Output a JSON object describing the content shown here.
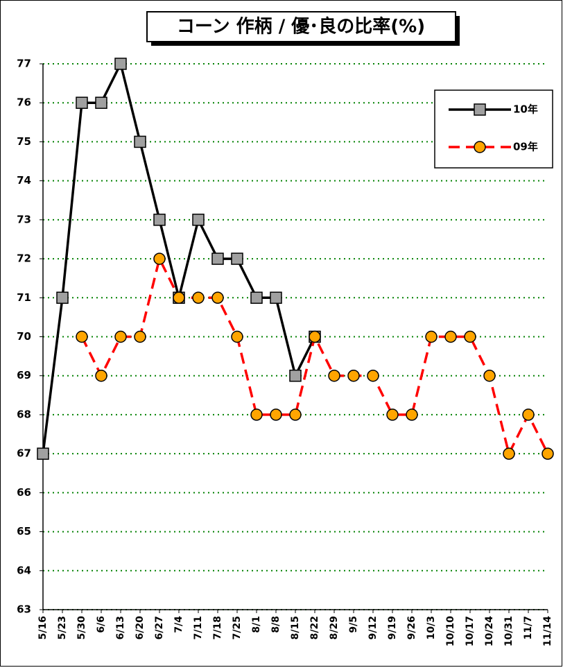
{
  "chart_data": {
    "type": "line",
    "title": "コーン 作柄 / 優･良の比率(%)",
    "categories": [
      "5/16",
      "5/23",
      "5/30",
      "6/6",
      "6/13",
      "6/20",
      "6/27",
      "7/4",
      "7/11",
      "7/18",
      "7/25",
      "8/1",
      "8/8",
      "8/15",
      "8/22",
      "8/29",
      "9/5",
      "9/12",
      "9/19",
      "9/26",
      "10/3",
      "10/10",
      "10/17",
      "10/24",
      "10/31",
      "11/7",
      "11/14"
    ],
    "series": [
      {
        "name": "10年",
        "color": "#000000",
        "marker": "square",
        "marker_color": "#a0a0a0",
        "values": [
          67,
          71,
          76,
          76,
          77,
          75,
          73,
          71,
          73,
          72,
          72,
          71,
          71,
          69,
          70,
          null,
          null,
          null,
          null,
          null,
          null,
          null,
          null,
          null,
          null,
          null,
          null
        ]
      },
      {
        "name": "09年",
        "color": "#ff0000",
        "marker": "circle",
        "marker_color": "#ffa500",
        "dashed": true,
        "values": [
          null,
          null,
          70,
          69,
          70,
          70,
          72,
          71,
          71,
          71,
          70,
          68,
          68,
          68,
          70,
          69,
          69,
          69,
          68,
          68,
          70,
          70,
          70,
          69,
          67,
          68,
          67
        ]
      }
    ],
    "ylim": [
      63,
      77
    ],
    "yticks": [
      63,
      64,
      65,
      66,
      67,
      68,
      69,
      70,
      71,
      72,
      73,
      74,
      75,
      76,
      77
    ],
    "grid": true,
    "legend": "upper right"
  }
}
